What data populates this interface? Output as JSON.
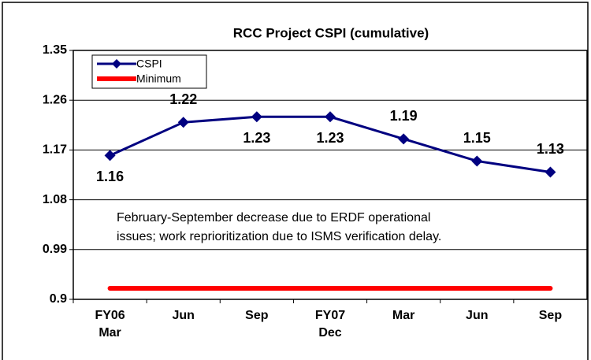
{
  "chart_data": {
    "type": "line",
    "title": "RCC Project CSPI (cumulative)",
    "categories": [
      "FY06\nMar",
      "Jun",
      "Sep",
      "FY07\nDec",
      "Mar",
      "Jun",
      "Sep"
    ],
    "series": [
      {
        "name": "CSPI",
        "color": "#000080",
        "values": [
          1.16,
          1.22,
          1.23,
          1.23,
          1.19,
          1.15,
          1.13
        ]
      },
      {
        "name": "Minimum",
        "color": "#ff0000",
        "values": [
          0.92,
          0.92,
          0.92,
          0.92,
          0.92,
          0.92,
          0.92
        ]
      }
    ],
    "annotation": "February-September decrease due to ERDF operational\nissues; work reprioritization due to ISMS verification delay.",
    "ylim": [
      0.9,
      1.35
    ],
    "yticks": [
      0.9,
      0.99,
      1.08,
      1.17,
      1.26,
      1.35
    ],
    "grid": true,
    "legend": "upper-left"
  }
}
